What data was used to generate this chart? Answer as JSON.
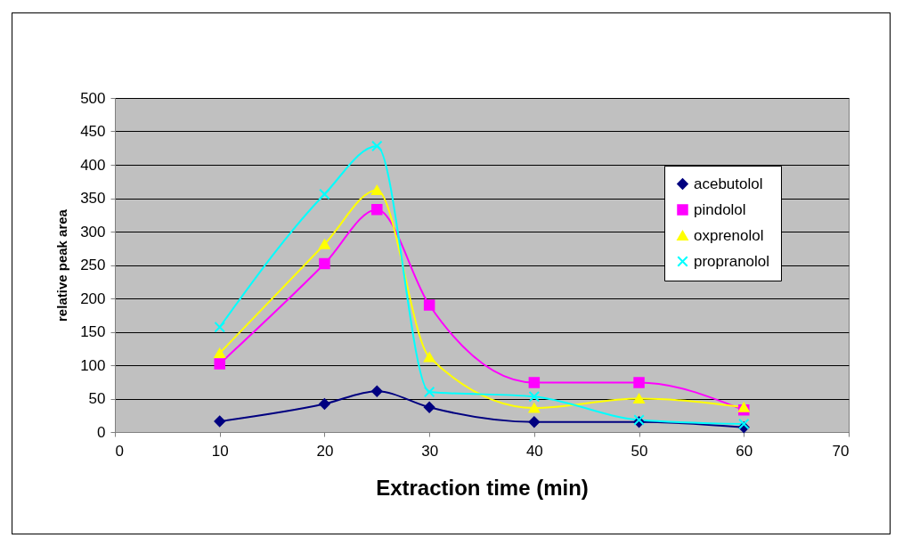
{
  "chart_data": {
    "type": "line",
    "xlabel": "Extraction time (min)",
    "ylabel": "relative peak area",
    "x": [
      10,
      20,
      25,
      30,
      40,
      50,
      60
    ],
    "series": [
      {
        "name": "acebutolol",
        "color": "#000080",
        "marker": "diamond",
        "values": [
          16,
          42,
          61,
          37,
          15,
          15,
          7
        ]
      },
      {
        "name": "pindolol",
        "color": "#ff00ff",
        "marker": "square",
        "values": [
          102,
          252,
          333,
          190,
          74,
          74,
          33
        ]
      },
      {
        "name": "oxprenolol",
        "color": "#ffff00",
        "marker": "triangle",
        "values": [
          118,
          281,
          362,
          112,
          36,
          50,
          37
        ]
      },
      {
        "name": "propranolol",
        "color": "#00ffff",
        "marker": "cross",
        "values": [
          157,
          356,
          428,
          60,
          53,
          18,
          12
        ]
      }
    ],
    "xlim": [
      0,
      70
    ],
    "xticks": [
      0,
      10,
      20,
      30,
      40,
      50,
      60,
      70
    ],
    "ylim": [
      0,
      500
    ],
    "yticks": [
      0,
      50,
      100,
      150,
      200,
      250,
      300,
      350,
      400,
      450,
      500
    ],
    "grid": "y",
    "legend": "top right",
    "line_style": "solid"
  }
}
